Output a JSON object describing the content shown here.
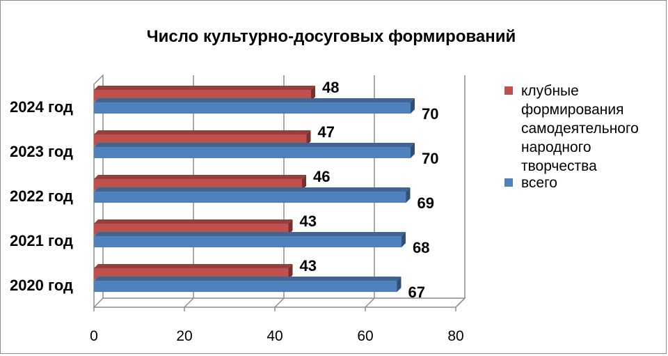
{
  "chart_data": {
    "type": "bar",
    "orientation": "horizontal",
    "title": "Число культурно-досуговых формирований",
    "categories": [
      "2020 год",
      "2021 год",
      "2022 год",
      "2023 год",
      "2024 год"
    ],
    "series": [
      {
        "name": "клубные формирования самодеятельного народного творчества",
        "color": "#c0504d",
        "values": [
          43,
          43,
          46,
          47,
          48
        ]
      },
      {
        "name": "всего",
        "color": "#4f81bd",
        "values": [
          67,
          68,
          69,
          70,
          70
        ]
      }
    ],
    "xlim": [
      0,
      80
    ],
    "xticks": [
      "0",
      "20",
      "40",
      "60",
      "80"
    ],
    "grid": true,
    "legend": "right",
    "style": "3d"
  }
}
